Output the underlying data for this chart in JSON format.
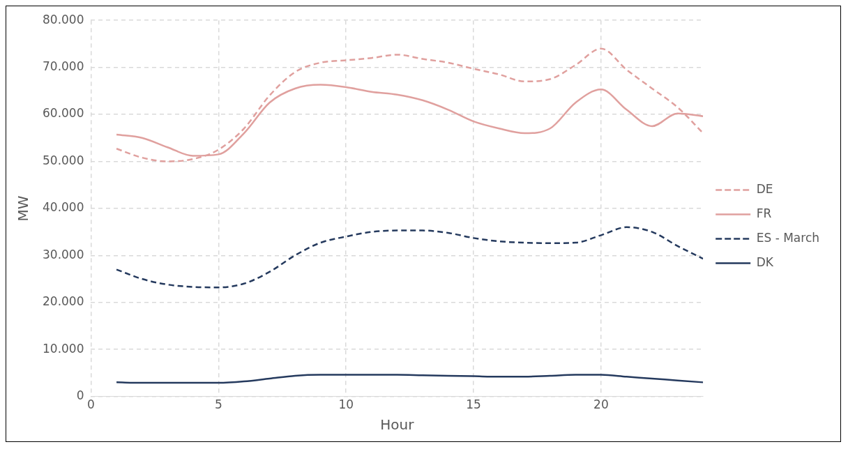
{
  "chart_data": {
    "type": "line",
    "xlabel": "Hour",
    "ylabel": "MW",
    "x": [
      1,
      2,
      3,
      4,
      5,
      6,
      7,
      8,
      9,
      10,
      11,
      12,
      13,
      14,
      15,
      16,
      17,
      18,
      19,
      20,
      21,
      22,
      23,
      24
    ],
    "xlim": [
      0,
      24
    ],
    "xticks": [
      0,
      5,
      10,
      15,
      20
    ],
    "ylim": [
      0,
      80000
    ],
    "yticks": [
      {
        "value": 0,
        "label": "0"
      },
      {
        "value": 10000,
        "label": "10.000"
      },
      {
        "value": 20000,
        "label": "20.000"
      },
      {
        "value": 30000,
        "label": "30.000"
      },
      {
        "value": 40000,
        "label": "40.000"
      },
      {
        "value": 50000,
        "label": "50.000"
      },
      {
        "value": 60000,
        "label": "60.000"
      },
      {
        "value": 70000,
        "label": "70.000"
      },
      {
        "value": 80000,
        "label": "80.000"
      }
    ],
    "grid": true,
    "legend": "right",
    "marker": "none",
    "series": [
      {
        "name": "DE",
        "color": "#e0a09e",
        "line_style": "dashed",
        "values": [
          52700,
          50800,
          50000,
          50500,
          52500,
          57000,
          64000,
          69000,
          71000,
          71500,
          72000,
          72700,
          71800,
          71000,
          69700,
          68500,
          67000,
          67500,
          70500,
          74000,
          69500,
          65500,
          61500,
          56000
        ]
      },
      {
        "name": "FR",
        "color": "#e0a09e",
        "line_style": "solid",
        "values": [
          55700,
          55000,
          53000,
          51200,
          51500,
          56000,
          62500,
          65500,
          66300,
          65800,
          64800,
          64200,
          63000,
          61000,
          58500,
          57000,
          56000,
          57000,
          62500,
          65300,
          61000,
          57500,
          60200,
          59600
        ]
      },
      {
        "name": "ES - March",
        "color": "#253a5e",
        "line_style": "dashed",
        "values": [
          27000,
          25000,
          23800,
          23300,
          23200,
          24000,
          26500,
          30000,
          32700,
          34000,
          35000,
          35300,
          35300,
          34800,
          33700,
          33000,
          32700,
          32600,
          32700,
          34300,
          36000,
          35000,
          32000,
          29300
        ]
      },
      {
        "name": "DK",
        "color": "#253a5e",
        "line_style": "solid",
        "values": [
          3000,
          2900,
          2900,
          2900,
          2900,
          3200,
          3800,
          4400,
          4600,
          4600,
          4600,
          4600,
          4500,
          4400,
          4300,
          4200,
          4200,
          4400,
          4600,
          4600,
          4200,
          3800,
          3400,
          3000
        ]
      }
    ]
  }
}
